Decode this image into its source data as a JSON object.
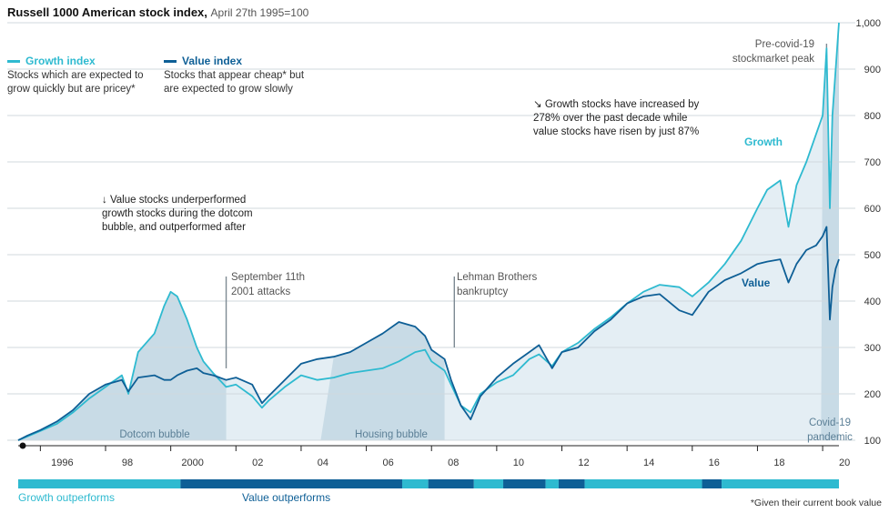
{
  "header": {
    "title": "Russell 1000 American stock index,",
    "subtitle": "April 27th 1995=100"
  },
  "legend": {
    "growth": {
      "label": "Growth index",
      "desc1": "Stocks which are expected to",
      "desc2": "grow quickly but are pricey*"
    },
    "value": {
      "label": "Value index",
      "desc1": "Stocks that appear cheap* but",
      "desc2": "are expected to grow slowly"
    }
  },
  "annotations": {
    "dotcom_note": [
      "↓ Value stocks underperformed",
      "growth stocks during the dotcom",
      "bubble, and outperformed after"
    ],
    "decade_note": [
      "↘ Growth stocks have increased by",
      "278% over the past decade while",
      "value stocks have risen by just 87%"
    ],
    "sept11": [
      "September 11th",
      "2001 attacks"
    ],
    "lehman": [
      "Lehman Brothers",
      "bankruptcy"
    ],
    "precovid": [
      "Pre-covid-19",
      "stockmarket peak"
    ],
    "dotcom_label": "Dotcom bubble",
    "housing_label": "Housing bubble",
    "covid_label": [
      "Covid-19",
      "pandemic"
    ],
    "growth_label": "Growth",
    "value_label": "Value"
  },
  "bottom": {
    "growth_outperforms": "Growth outperforms",
    "value_outperforms": "Value outperforms",
    "footnote": "*Given their current book value"
  },
  "colors": {
    "growth": "#2ebad0",
    "value": "#0e5f96",
    "shade_dark": "#c8dbe6",
    "shade_light": "#e4eef4",
    "grid": "#d0d8de"
  },
  "chart_data": {
    "type": "line",
    "ylim": [
      100,
      1000
    ],
    "xlim": [
      1995.32,
      2020.5
    ],
    "yticks": [
      100,
      200,
      300,
      400,
      500,
      600,
      700,
      800,
      900,
      1000
    ],
    "ytick_labels": [
      "100",
      "200",
      "300",
      "400",
      "500",
      "600",
      "700",
      "800",
      "900",
      "1,000"
    ],
    "xticks": [
      1996,
      1998,
      2000,
      2002,
      2004,
      2006,
      2008,
      2010,
      2012,
      2014,
      2016,
      2018,
      2020
    ],
    "xtick_labels": [
      "1996",
      "98",
      "2000",
      "02",
      "04",
      "06",
      "08",
      "10",
      "12",
      "14",
      "16",
      "18",
      "20"
    ],
    "shaded_periods": [
      {
        "label": "Dotcom bubble",
        "start": 1995.32,
        "end": 2001.7
      },
      {
        "label": "Housing bubble",
        "start": 2004.6,
        "end": 2008.4
      },
      {
        "label": "Covid-19 pandemic",
        "start": 2019.95,
        "end": 2020.5
      }
    ],
    "events": [
      {
        "label": "September 11th 2001 attacks",
        "x": 2001.7,
        "y": 255
      },
      {
        "label": "Lehman Brothers bankruptcy",
        "x": 2008.7,
        "y": 300
      },
      {
        "label": "Pre-covid-19 stockmarket peak",
        "x": 2020.12,
        "y": 945
      }
    ],
    "series": [
      {
        "name": "Growth",
        "x": [
          1995.32,
          1995.6,
          1996.0,
          1996.5,
          1997.0,
          1997.5,
          1998.0,
          1998.5,
          1998.7,
          1999.0,
          1999.5,
          1999.8,
          2000.0,
          2000.2,
          2000.5,
          2000.8,
          2001.0,
          2001.3,
          2001.7,
          2002.0,
          2002.5,
          2002.8,
          2003.0,
          2003.5,
          2004.0,
          2004.5,
          2005.0,
          2005.5,
          2006.0,
          2006.5,
          2007.0,
          2007.5,
          2007.8,
          2008.0,
          2008.4,
          2008.6,
          2008.9,
          2009.2,
          2009.5,
          2010.0,
          2010.5,
          2011.0,
          2011.3,
          2011.7,
          2012.0,
          2012.5,
          2013.0,
          2013.5,
          2014.0,
          2014.5,
          2015.0,
          2015.6,
          2016.0,
          2016.5,
          2017.0,
          2017.5,
          2018.0,
          2018.3,
          2018.7,
          2018.95,
          2019.2,
          2019.5,
          2019.8,
          2020.0,
          2020.12,
          2020.22,
          2020.3,
          2020.4,
          2020.5
        ],
        "values": [
          100,
          108,
          120,
          135,
          160,
          190,
          215,
          240,
          200,
          290,
          330,
          390,
          420,
          410,
          360,
          300,
          270,
          245,
          215,
          220,
          195,
          170,
          185,
          215,
          240,
          230,
          235,
          245,
          250,
          255,
          270,
          290,
          295,
          270,
          250,
          220,
          175,
          160,
          200,
          225,
          240,
          275,
          285,
          260,
          290,
          310,
          340,
          365,
          395,
          420,
          435,
          430,
          410,
          440,
          480,
          530,
          600,
          640,
          660,
          560,
          650,
          700,
          760,
          800,
          945,
          600,
          800,
          900,
          1000
        ]
      },
      {
        "name": "Value",
        "x": [
          1995.32,
          1995.6,
          1996.0,
          1996.5,
          1997.0,
          1997.5,
          1998.0,
          1998.5,
          1998.7,
          1999.0,
          1999.5,
          1999.8,
          2000.0,
          2000.2,
          2000.5,
          2000.8,
          2001.0,
          2001.3,
          2001.7,
          2002.0,
          2002.5,
          2002.8,
          2003.0,
          2003.5,
          2004.0,
          2004.5,
          2005.0,
          2005.5,
          2006.0,
          2006.5,
          2007.0,
          2007.5,
          2007.8,
          2008.0,
          2008.4,
          2008.6,
          2008.9,
          2009.2,
          2009.5,
          2010.0,
          2010.5,
          2011.0,
          2011.3,
          2011.7,
          2012.0,
          2012.5,
          2013.0,
          2013.5,
          2014.0,
          2014.5,
          2015.0,
          2015.6,
          2016.0,
          2016.5,
          2017.0,
          2017.5,
          2018.0,
          2018.3,
          2018.7,
          2018.95,
          2019.2,
          2019.5,
          2019.8,
          2020.0,
          2020.12,
          2020.22,
          2020.3,
          2020.4,
          2020.5
        ],
        "values": [
          100,
          110,
          122,
          140,
          165,
          200,
          220,
          230,
          205,
          235,
          240,
          230,
          230,
          240,
          250,
          255,
          245,
          240,
          230,
          235,
          220,
          180,
          195,
          230,
          265,
          275,
          280,
          290,
          310,
          330,
          355,
          345,
          325,
          295,
          275,
          230,
          175,
          145,
          195,
          235,
          265,
          290,
          305,
          255,
          290,
          300,
          335,
          360,
          395,
          410,
          415,
          380,
          370,
          420,
          445,
          460,
          480,
          485,
          490,
          440,
          480,
          510,
          520,
          540,
          560,
          360,
          430,
          470,
          490
        ]
      }
    ],
    "bottom_bar": {
      "labels": [
        "Growth outperforms",
        "Value outperforms"
      ],
      "segments": [
        {
          "start": 1995.32,
          "end": 2000.3,
          "winner": "Growth"
        },
        {
          "start": 2000.3,
          "end": 2007.1,
          "winner": "Value"
        },
        {
          "start": 2007.1,
          "end": 2007.9,
          "winner": "Growth"
        },
        {
          "start": 2007.9,
          "end": 2009.3,
          "winner": "Value"
        },
        {
          "start": 2009.3,
          "end": 2010.2,
          "winner": "Growth"
        },
        {
          "start": 2010.2,
          "end": 2011.5,
          "winner": "Value"
        },
        {
          "start": 2011.5,
          "end": 2011.9,
          "winner": "Growth"
        },
        {
          "start": 2011.9,
          "end": 2012.7,
          "winner": "Value"
        },
        {
          "start": 2012.7,
          "end": 2016.3,
          "winner": "Growth"
        },
        {
          "start": 2016.3,
          "end": 2016.9,
          "winner": "Value"
        },
        {
          "start": 2016.9,
          "end": 2020.5,
          "winner": "Growth"
        }
      ]
    }
  }
}
